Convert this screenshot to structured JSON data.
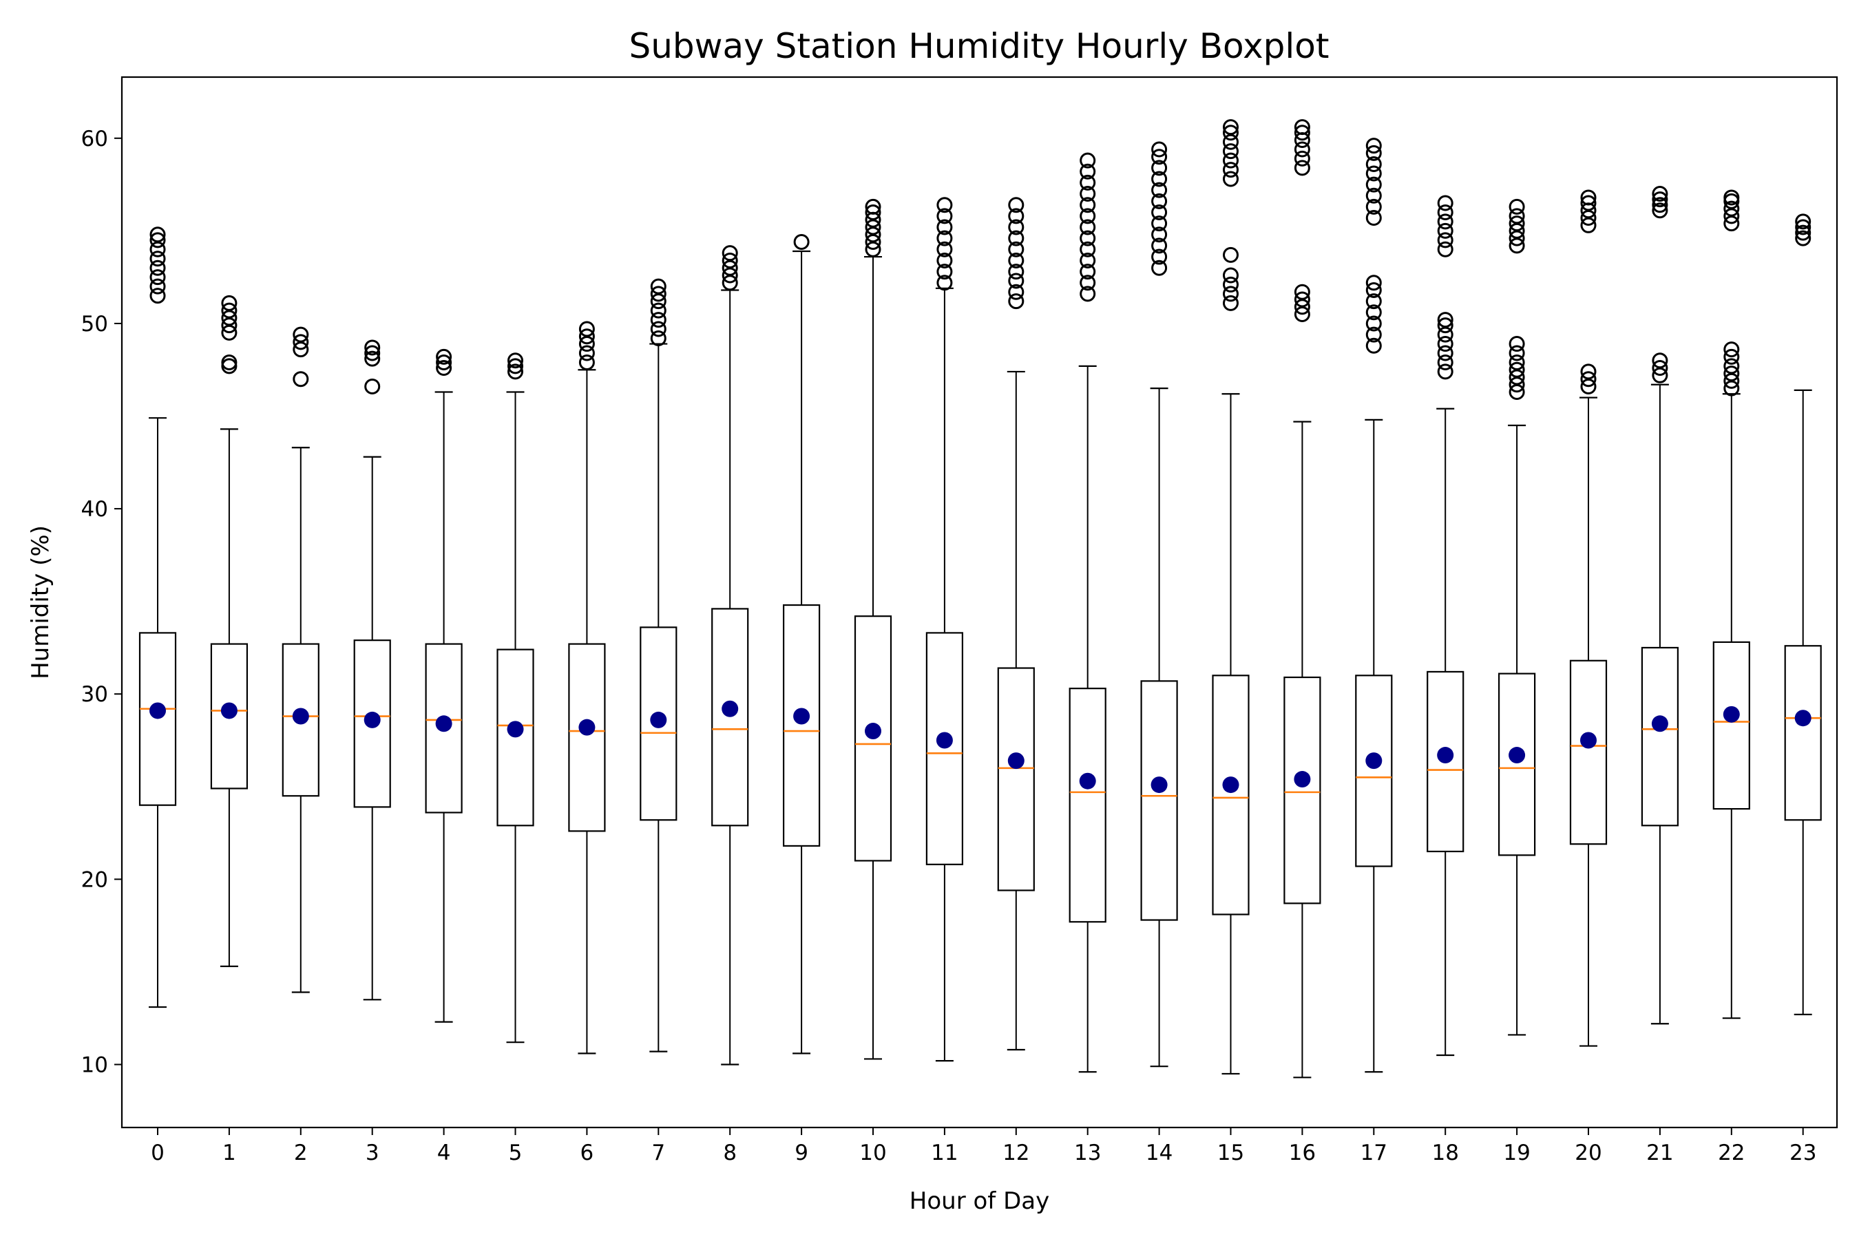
{
  "chart_data": {
    "type": "boxplot",
    "title": "Subway Station Humidity Hourly Boxplot",
    "xlabel": "Hour of Day",
    "ylabel": "Humidity (%)",
    "ylim": [
      6.6,
      63.3
    ],
    "yticks": [
      10,
      20,
      30,
      40,
      50,
      60
    ],
    "categories": [
      "0",
      "1",
      "2",
      "3",
      "4",
      "5",
      "6",
      "7",
      "8",
      "9",
      "10",
      "11",
      "12",
      "13",
      "14",
      "15",
      "16",
      "17",
      "18",
      "19",
      "20",
      "21",
      "22",
      "23"
    ],
    "grid": false,
    "legend": "none",
    "colors": {
      "box": "#000000",
      "median": "#ff7f0e",
      "mean": "#00008b"
    },
    "boxes": [
      {
        "whislo": 13.1,
        "q1": 24.0,
        "med": 29.2,
        "q3": 33.3,
        "whishi": 44.9,
        "mean": 29.1,
        "fliers": [
          51.5,
          52.0,
          52.5,
          53.0,
          53.5,
          54.0,
          54.5,
          54.8
        ]
      },
      {
        "whislo": 15.3,
        "q1": 24.9,
        "med": 29.1,
        "q3": 32.7,
        "whishi": 44.3,
        "mean": 29.1,
        "fliers": [
          47.7,
          47.9,
          49.5,
          49.9,
          50.3,
          50.7,
          51.1
        ]
      },
      {
        "whislo": 13.9,
        "q1": 24.5,
        "med": 28.8,
        "q3": 32.7,
        "whishi": 43.3,
        "mean": 28.8,
        "fliers": [
          47.0,
          48.6,
          49.0,
          49.4
        ]
      },
      {
        "whislo": 13.5,
        "q1": 23.9,
        "med": 28.8,
        "q3": 32.9,
        "whishi": 42.8,
        "mean": 28.6,
        "fliers": [
          46.6,
          48.1,
          48.4,
          48.7
        ]
      },
      {
        "whislo": 12.3,
        "q1": 23.6,
        "med": 28.6,
        "q3": 32.7,
        "whishi": 46.3,
        "mean": 28.4,
        "fliers": [
          47.6,
          47.9,
          48.2
        ]
      },
      {
        "whislo": 11.2,
        "q1": 22.9,
        "med": 28.3,
        "q3": 32.4,
        "whishi": 46.3,
        "mean": 28.1,
        "fliers": [
          47.4,
          47.7,
          48.0
        ]
      },
      {
        "whislo": 10.6,
        "q1": 22.6,
        "med": 28.0,
        "q3": 32.7,
        "whishi": 47.5,
        "mean": 28.2,
        "fliers": [
          47.9,
          48.4,
          48.9,
          49.3,
          49.7
        ]
      },
      {
        "whislo": 10.7,
        "q1": 23.2,
        "med": 27.9,
        "q3": 33.6,
        "whishi": 48.9,
        "mean": 28.6,
        "fliers": [
          49.2,
          49.7,
          50.2,
          50.7,
          51.2,
          51.6,
          52.0
        ]
      },
      {
        "whislo": 10.0,
        "q1": 22.9,
        "med": 28.1,
        "q3": 34.6,
        "whishi": 51.8,
        "mean": 29.2,
        "fliers": [
          52.2,
          52.6,
          53.0,
          53.4,
          53.8
        ]
      },
      {
        "whislo": 10.6,
        "q1": 21.8,
        "med": 28.0,
        "q3": 34.8,
        "whishi": 53.9,
        "mean": 28.8,
        "fliers": [
          54.4
        ]
      },
      {
        "whislo": 10.3,
        "q1": 21.0,
        "med": 27.3,
        "q3": 34.2,
        "whishi": 53.6,
        "mean": 28.0,
        "fliers": [
          54.0,
          54.4,
          54.8,
          55.2,
          55.6,
          56.0,
          56.3
        ]
      },
      {
        "whislo": 10.2,
        "q1": 20.8,
        "med": 26.8,
        "q3": 33.3,
        "whishi": 51.9,
        "mean": 27.5,
        "fliers": [
          52.2,
          52.8,
          53.4,
          54.0,
          54.6,
          55.2,
          55.8,
          56.4
        ]
      },
      {
        "whislo": 10.8,
        "q1": 19.4,
        "med": 26.0,
        "q3": 31.4,
        "whishi": 47.4,
        "mean": 26.4,
        "fliers": [
          51.2,
          51.7,
          52.3,
          52.8,
          53.4,
          54.0,
          54.6,
          55.2,
          55.8,
          56.4
        ]
      },
      {
        "whislo": 9.6,
        "q1": 17.7,
        "med": 24.7,
        "q3": 30.3,
        "whishi": 47.7,
        "mean": 25.3,
        "fliers": [
          51.6,
          52.2,
          52.8,
          53.4,
          54.0,
          54.6,
          55.2,
          55.8,
          56.4,
          57.0,
          57.6,
          58.2,
          58.8
        ]
      },
      {
        "whislo": 9.9,
        "q1": 17.8,
        "med": 24.5,
        "q3": 30.7,
        "whishi": 46.5,
        "mean": 25.1,
        "fliers": [
          53.0,
          53.6,
          54.2,
          54.8,
          55.4,
          56.0,
          56.6,
          57.2,
          57.8,
          58.4,
          59.0,
          59.4
        ]
      },
      {
        "whislo": 9.5,
        "q1": 18.1,
        "med": 24.4,
        "q3": 31.0,
        "whishi": 46.2,
        "mean": 25.1,
        "fliers": [
          51.1,
          51.6,
          52.1,
          52.6,
          53.7,
          57.8,
          58.3,
          58.8,
          59.3,
          59.8,
          60.3,
          60.6
        ]
      },
      {
        "whislo": 9.3,
        "q1": 18.7,
        "med": 24.7,
        "q3": 30.9,
        "whishi": 44.7,
        "mean": 25.4,
        "fliers": [
          50.5,
          50.9,
          51.3,
          51.7,
          58.4,
          58.9,
          59.4,
          59.9,
          60.3,
          60.6
        ]
      },
      {
        "whislo": 9.6,
        "q1": 20.7,
        "med": 25.5,
        "q3": 31.0,
        "whishi": 44.8,
        "mean": 26.4,
        "fliers": [
          48.8,
          49.4,
          50.0,
          50.6,
          51.2,
          51.8,
          52.2,
          55.7,
          56.3,
          56.9,
          57.5,
          58.1,
          58.6,
          59.2,
          59.6
        ]
      },
      {
        "whislo": 10.5,
        "q1": 21.5,
        "med": 25.9,
        "q3": 31.2,
        "whishi": 45.4,
        "mean": 26.7,
        "fliers": [
          47.4,
          47.9,
          48.4,
          48.9,
          49.4,
          49.9,
          50.2,
          54.0,
          54.5,
          55.0,
          55.5,
          56.0,
          56.5
        ]
      },
      {
        "whislo": 11.6,
        "q1": 21.3,
        "med": 26.0,
        "q3": 31.1,
        "whishi": 44.5,
        "mean": 26.7,
        "fliers": [
          46.3,
          46.7,
          47.1,
          47.5,
          47.9,
          48.4,
          48.9,
          54.2,
          54.6,
          55.0,
          55.4,
          55.8,
          56.3
        ]
      },
      {
        "whislo": 11.0,
        "q1": 21.9,
        "med": 27.2,
        "q3": 31.8,
        "whishi": 46.0,
        "mean": 27.5,
        "fliers": [
          46.6,
          47.0,
          47.4,
          55.3,
          55.7,
          56.1,
          56.5,
          56.8
        ]
      },
      {
        "whislo": 12.2,
        "q1": 22.9,
        "med": 28.1,
        "q3": 32.5,
        "whishi": 46.7,
        "mean": 28.4,
        "fliers": [
          47.2,
          47.6,
          48.0,
          56.1,
          56.4,
          56.7,
          57.0
        ]
      },
      {
        "whislo": 12.5,
        "q1": 23.8,
        "med": 28.5,
        "q3": 32.8,
        "whishi": 46.2,
        "mean": 28.9,
        "fliers": [
          46.5,
          46.9,
          47.3,
          47.7,
          48.2,
          48.6,
          55.4,
          55.8,
          56.2,
          56.6,
          56.8
        ]
      },
      {
        "whislo": 12.7,
        "q1": 23.2,
        "med": 28.7,
        "q3": 32.6,
        "whishi": 46.4,
        "mean": 28.7,
        "fliers": [
          54.6,
          54.9,
          55.2,
          55.5
        ]
      }
    ]
  }
}
